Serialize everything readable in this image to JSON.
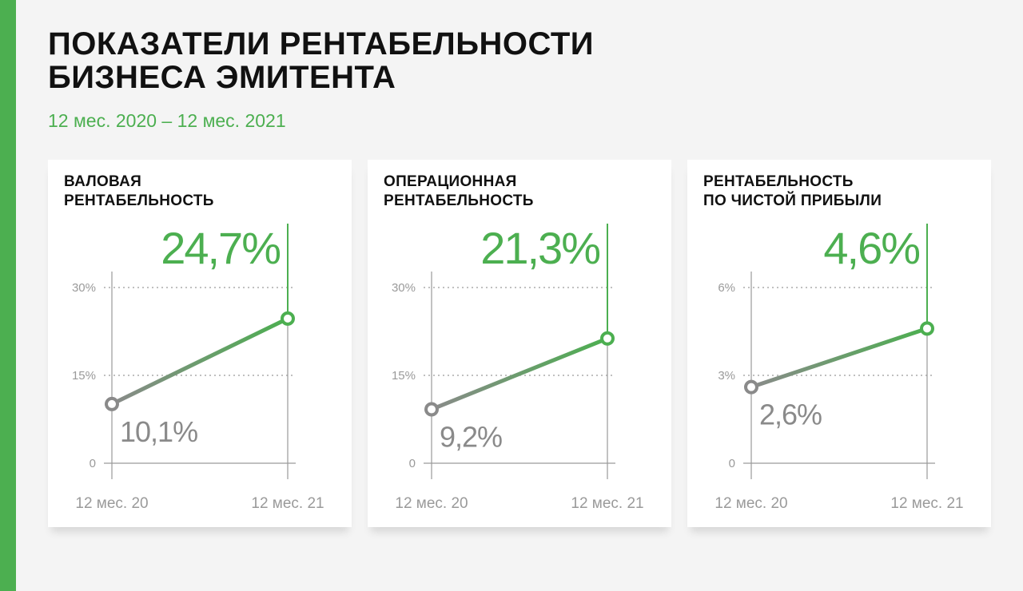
{
  "header": {
    "title_line1": "ПОКАЗАТЕЛИ РЕНТАБЕЛЬНОСТИ",
    "title_line2": "БИЗНЕСА ЭМИТЕНТА",
    "period": "12 мес. 2020 – 12 мес. 2021"
  },
  "colors": {
    "accent": "#4caf50",
    "past": "#8a8a8a",
    "background": "#f4f4f4"
  },
  "chart_data": [
    {
      "type": "line",
      "title_line1": "ВАЛОВАЯ",
      "title_line2": "РЕНТАБЕЛЬНОСТЬ",
      "categories": [
        "12 мес. 20",
        "12 мес. 21"
      ],
      "values": [
        10.1,
        24.7
      ],
      "value_labels": [
        "10,1%",
        "24,7%"
      ],
      "yticks": [
        0,
        15,
        30
      ],
      "ytick_labels": [
        "0",
        "15%",
        "30%"
      ],
      "ylim": [
        0,
        30
      ],
      "grid": true
    },
    {
      "type": "line",
      "title_line1": "ОПЕРАЦИОННАЯ",
      "title_line2": "РЕНТАБЕЛЬНОСТЬ",
      "categories": [
        "12 мес. 20",
        "12 мес. 21"
      ],
      "values": [
        9.2,
        21.3
      ],
      "value_labels": [
        "9,2%",
        "21,3%"
      ],
      "yticks": [
        0,
        15,
        30
      ],
      "ytick_labels": [
        "0",
        "15%",
        "30%"
      ],
      "ylim": [
        0,
        30
      ],
      "grid": true
    },
    {
      "type": "line",
      "title_line1": "РЕНТАБЕЛЬНОСТЬ",
      "title_line2": "ПО ЧИСТОЙ ПРИБЫЛИ",
      "categories": [
        "12 мес. 20",
        "12 мес. 21"
      ],
      "values": [
        2.6,
        4.6
      ],
      "value_labels": [
        "2,6%",
        "4,6%"
      ],
      "yticks": [
        0,
        3,
        6
      ],
      "ytick_labels": [
        "0",
        "3%",
        "6%"
      ],
      "ylim": [
        0,
        6
      ],
      "grid": true
    }
  ]
}
